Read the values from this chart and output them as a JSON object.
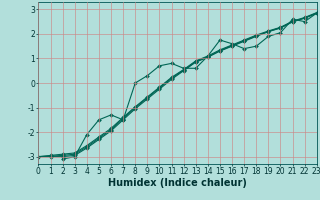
{
  "title": "",
  "xlabel": "Humidex (Indice chaleur)",
  "ylabel": "",
  "bg_color": "#b2dfdb",
  "grid_color": "#cc8888",
  "line_color": "#006655",
  "marker_color": "#006655",
  "xlim": [
    0,
    23
  ],
  "ylim": [
    -3.3,
    3.3
  ],
  "yticks": [
    -3,
    -2,
    -1,
    0,
    1,
    2,
    3
  ],
  "xticks": [
    0,
    1,
    2,
    3,
    4,
    5,
    6,
    7,
    8,
    9,
    10,
    11,
    12,
    13,
    14,
    15,
    16,
    17,
    18,
    19,
    20,
    21,
    22,
    23
  ],
  "series_main": [
    null,
    null,
    -3.1,
    -3.0,
    -2.1,
    -1.5,
    -1.3,
    -1.5,
    0.0,
    0.3,
    0.7,
    0.8,
    0.6,
    0.6,
    1.1,
    1.75,
    1.6,
    1.4,
    1.5,
    1.9,
    2.05,
    2.6,
    2.5,
    2.85
  ],
  "series_linear": [
    [
      -3.0,
      -3.0,
      -3.0,
      -2.95,
      -2.65,
      -2.3,
      -1.95,
      -1.5,
      -1.05,
      -0.65,
      -0.25,
      0.15,
      0.5,
      0.85,
      1.05,
      1.3,
      1.5,
      1.7,
      1.9,
      2.1,
      2.25,
      2.5,
      2.65,
      2.85
    ],
    [
      -3.0,
      -2.95,
      -2.9,
      -2.85,
      -2.55,
      -2.2,
      -1.85,
      -1.4,
      -0.97,
      -0.57,
      -0.17,
      0.23,
      0.55,
      0.9,
      1.1,
      1.35,
      1.55,
      1.75,
      1.95,
      2.12,
      2.27,
      2.52,
      2.67,
      2.87
    ],
    [
      -3.0,
      -2.98,
      -2.95,
      -2.9,
      -2.6,
      -2.25,
      -1.9,
      -1.45,
      -1.0,
      -0.6,
      -0.2,
      0.2,
      0.52,
      0.87,
      1.07,
      1.32,
      1.52,
      1.72,
      1.92,
      2.09,
      2.24,
      2.49,
      2.64,
      2.84
    ]
  ],
  "marker": "D",
  "markersize": 2.0,
  "linewidth": 0.8,
  "tick_fontsize": 5.5,
  "xlabel_fontsize": 7,
  "xlabel_fontweight": "bold"
}
